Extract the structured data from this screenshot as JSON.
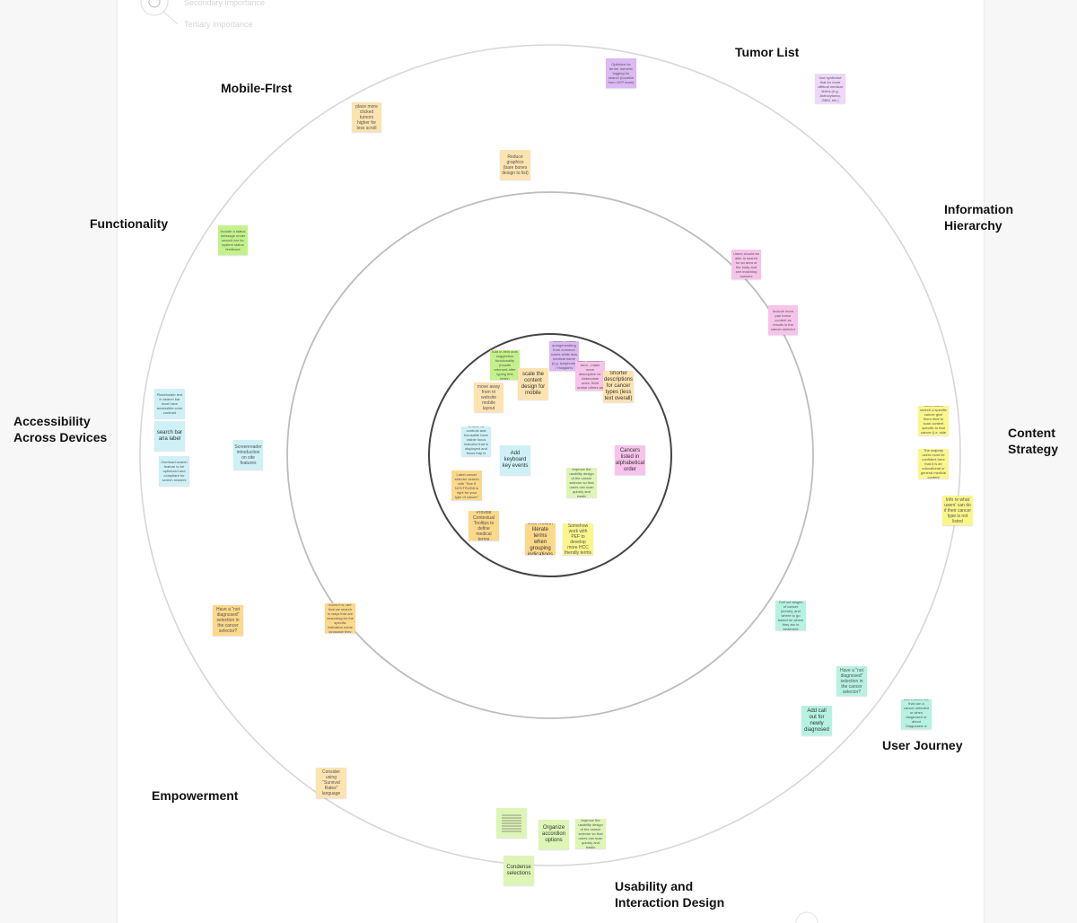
{
  "legend": {
    "secondary": "Secondary importance",
    "tertiary": "Tertiary importance"
  },
  "colors": {
    "orange": "#fde3b0",
    "green": "#c4f28a",
    "blue": "#cdf1f7",
    "pink": "#f7c3ea",
    "purple": "#dbb9f5",
    "lavender": "#efd7fb",
    "yellow": "#fbf68a",
    "teal": "#b6f2e2",
    "gold": "#fcd88a",
    "lightgreen": "#ddf6b6"
  },
  "labels": {
    "tumor_list": "Tumor List",
    "mobile_first": "Mobile-FIrst",
    "information_hierarchy": "Information Hierarchy",
    "functionality": "Functionality",
    "accessibility": "Accessibility Across Devices",
    "content_strategy": "Content Strategy",
    "user_journey": "User Journey",
    "empowerment": "Empowerment",
    "usability": "Usability and Interaction Design"
  },
  "notes": [
    {
      "text": "Optimize for terms' numeric logging for search (location from HCP team)",
      "color": "purple",
      "size": "sm"
    },
    {
      "text": "Use synthoise that for more difficult medical terms (e.g. Astrocytoma, GBM, etc.)",
      "color": "lavender",
      "size": "sm"
    },
    {
      "text": "place more clicked tumors higher for less scroll",
      "color": "orange",
      "size": "md"
    },
    {
      "text": "Reduce graphics (bare bones design to list)",
      "color": "orange",
      "size": "md"
    },
    {
      "text": "Include a status message under search bar for system status feedback",
      "color": "green",
      "size": "sm"
    },
    {
      "text": "Users should be able to search for an area of the body and see matching cancers",
      "color": "pink",
      "size": "sm"
    },
    {
      "text": "Include more pan tumor content as results in the cancer selector",
      "color": "pink",
      "size": "sm"
    },
    {
      "text": "Cancer results autogenerating from common cases while less medical name (e.g. lymphoma / Hodgkin's stage, etc.)",
      "color": "purple",
      "size": "sm"
    },
    {
      "text": "Add in-field auto suggestion functionality (results returned after typing first letter)",
      "color": "green",
      "size": "sm"
    },
    {
      "text": "More consistent term - make more descriptive vs. Abbreviate ones. Bold undue others as not",
      "color": "pink",
      "size": "sm"
    },
    {
      "text": "scale the content design for mobile",
      "color": "orange",
      "size": "lg"
    },
    {
      "text": "Shorter descriptions for cancer types (less text overall)",
      "color": "orange",
      "size": "lg"
    },
    {
      "text": "move away from tri website mobile layout",
      "color": "orange",
      "size": "md"
    },
    {
      "text": "Placeholder text in search bar must have accessible color contrast",
      "color": "blue",
      "size": "sm"
    },
    {
      "text": "search bar aria label",
      "color": "blue",
      "size": "lg"
    },
    {
      "text": "Overload search feature to be optimized and compliant for screen readers",
      "color": "blue",
      "size": "sm"
    },
    {
      "text": "Screenreader introduction on site features",
      "color": "blue",
      "size": "md"
    },
    {
      "text": "Ensure all controls and focusable have visible focus indicator that is displayed and focus trap is compliant",
      "color": "blue",
      "size": "sm"
    },
    {
      "text": "Add keyboard key events",
      "color": "blue",
      "size": "lg"
    },
    {
      "text": "Cancers listed in alphabetical order",
      "color": "pink",
      "size": "lg"
    },
    {
      "text": "Label cancer selector search with \"See if NOVTRUDA is right for your type of cancer\"",
      "color": "gold",
      "size": "sm"
    },
    {
      "text": "Improve the usability design of the cancer selector so that users can scan quickly and easily",
      "color": "lightgreen",
      "size": "sm"
    },
    {
      "text": "Provide Contextual Tooltips to define medical terms",
      "color": "gold",
      "size": "md"
    },
    {
      "text": "Use health literate terms when grouping indications",
      "color": "gold",
      "size": "lg"
    },
    {
      "text": "Somehow work with PEF to develop more HCC friendly terms",
      "color": "yellow",
      "size": "md"
    },
    {
      "text": "When users search a specific cancer give them time to scan content specific to that cancer (i.e. side effects)",
      "color": "yellow",
      "size": "sm"
    },
    {
      "text": "The majority users must be confident here that it is an educational or general medical content",
      "color": "yellow",
      "size": "sm"
    },
    {
      "text": "Info re what users' can do if their cancer type is not listed",
      "color": "yellow",
      "size": "md"
    },
    {
      "text": "Have a \"not diagnosed\" selection in the cancer selector?",
      "color": "gold",
      "size": "md"
    },
    {
      "text": "Our research found it is rare that we search in ways that are searching for the specific indication name language they are using",
      "color": "gold",
      "size": "sm"
    },
    {
      "text": "Call out stages of cancer journey, and where to go based on where they are in treatment",
      "color": "teal",
      "size": "sm"
    },
    {
      "text": "Have a \"not diagnosed\" selection in the cancer selector?",
      "color": "teal",
      "size": "md"
    },
    {
      "text": "Add call out for newly diagnosed",
      "color": "teal",
      "size": "lg"
    },
    {
      "text": "Add option for users about use that can a cancer selected or when diagnosed or about Diagnosed or Patient Resources",
      "color": "teal",
      "size": "sm"
    },
    {
      "text": "Consider using \"Survival Rates\" language",
      "color": "orange",
      "size": "md"
    },
    {
      "text": "Organize accordion options",
      "color": "lightgreen",
      "size": "lg"
    },
    {
      "text": "Improve the usability design of the cancer selector so that users can scan quickly and easily",
      "color": "lightgreen",
      "size": "sm"
    },
    {
      "text": "Condense selections",
      "color": "lightgreen",
      "size": "lg"
    }
  ]
}
